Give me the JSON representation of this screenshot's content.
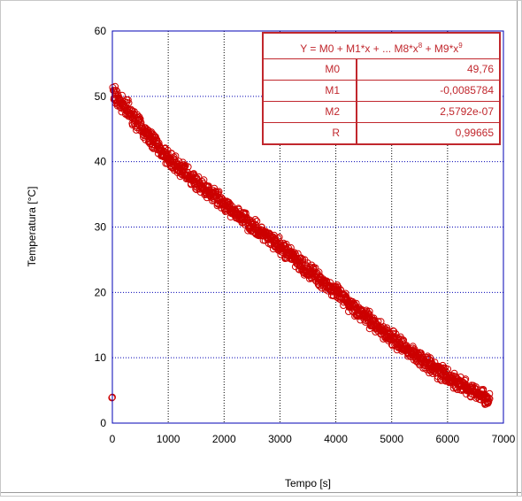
{
  "chart_data": {
    "type": "scatter",
    "xlabel": "Tempo [s]",
    "ylabel": "Temperatura [°C]",
    "xlim": [
      0,
      7000
    ],
    "ylim": [
      0,
      60
    ],
    "x_ticks": [
      "0",
      "1000",
      "2000",
      "3000",
      "4000",
      "5000",
      "6000",
      "7000"
    ],
    "y_ticks": [
      "0",
      "10",
      "20",
      "30",
      "40",
      "50",
      "60"
    ],
    "grid": true,
    "marker": "open-circle",
    "color": "#cc0000",
    "x_range_data": [
      0,
      6750
    ],
    "y_at_x": [
      {
        "x": 0,
        "y": 50.5
      },
      {
        "x": 500,
        "y": 45.5
      },
      {
        "x": 1000,
        "y": 40.5
      },
      {
        "x": 1500,
        "y": 37.0
      },
      {
        "x": 2000,
        "y": 33.5
      },
      {
        "x": 3000,
        "y": 27.0
      },
      {
        "x": 4000,
        "y": 20.0
      },
      {
        "x": 5000,
        "y": 13.0
      },
      {
        "x": 6000,
        "y": 7.0
      },
      {
        "x": 6750,
        "y": 3.5
      }
    ],
    "fit_table": {
      "equation_parts": [
        "Y = M0 + M1*x + ... M8*x",
        "8",
        " + M9*x",
        "9"
      ],
      "rows": [
        {
          "name": "M0",
          "value": "49,76"
        },
        {
          "name": "M1",
          "value": "-0,0085784"
        },
        {
          "name": "M2",
          "value": "2,5792e-07"
        },
        {
          "name": "R",
          "value": "0,99665"
        }
      ]
    }
  }
}
